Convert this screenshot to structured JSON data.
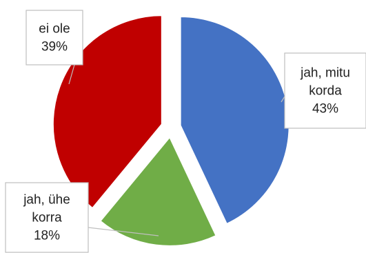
{
  "chart_data": {
    "type": "pie",
    "title": "",
    "categories": [
      "jah, mitu korda",
      "jah, ühe korra",
      "ei ole"
    ],
    "values": [
      43,
      18,
      39
    ],
    "labels": [
      {
        "lines": [
          "jah, mitu",
          "korda",
          "43%"
        ]
      },
      {
        "lines": [
          "jah, ühe",
          "korra",
          "18%"
        ]
      },
      {
        "lines": [
          "ei ole",
          "39%"
        ]
      }
    ],
    "colors": [
      "#4472C4",
      "#70AD47",
      "#C00000"
    ],
    "exploded": true,
    "legend": "none"
  }
}
